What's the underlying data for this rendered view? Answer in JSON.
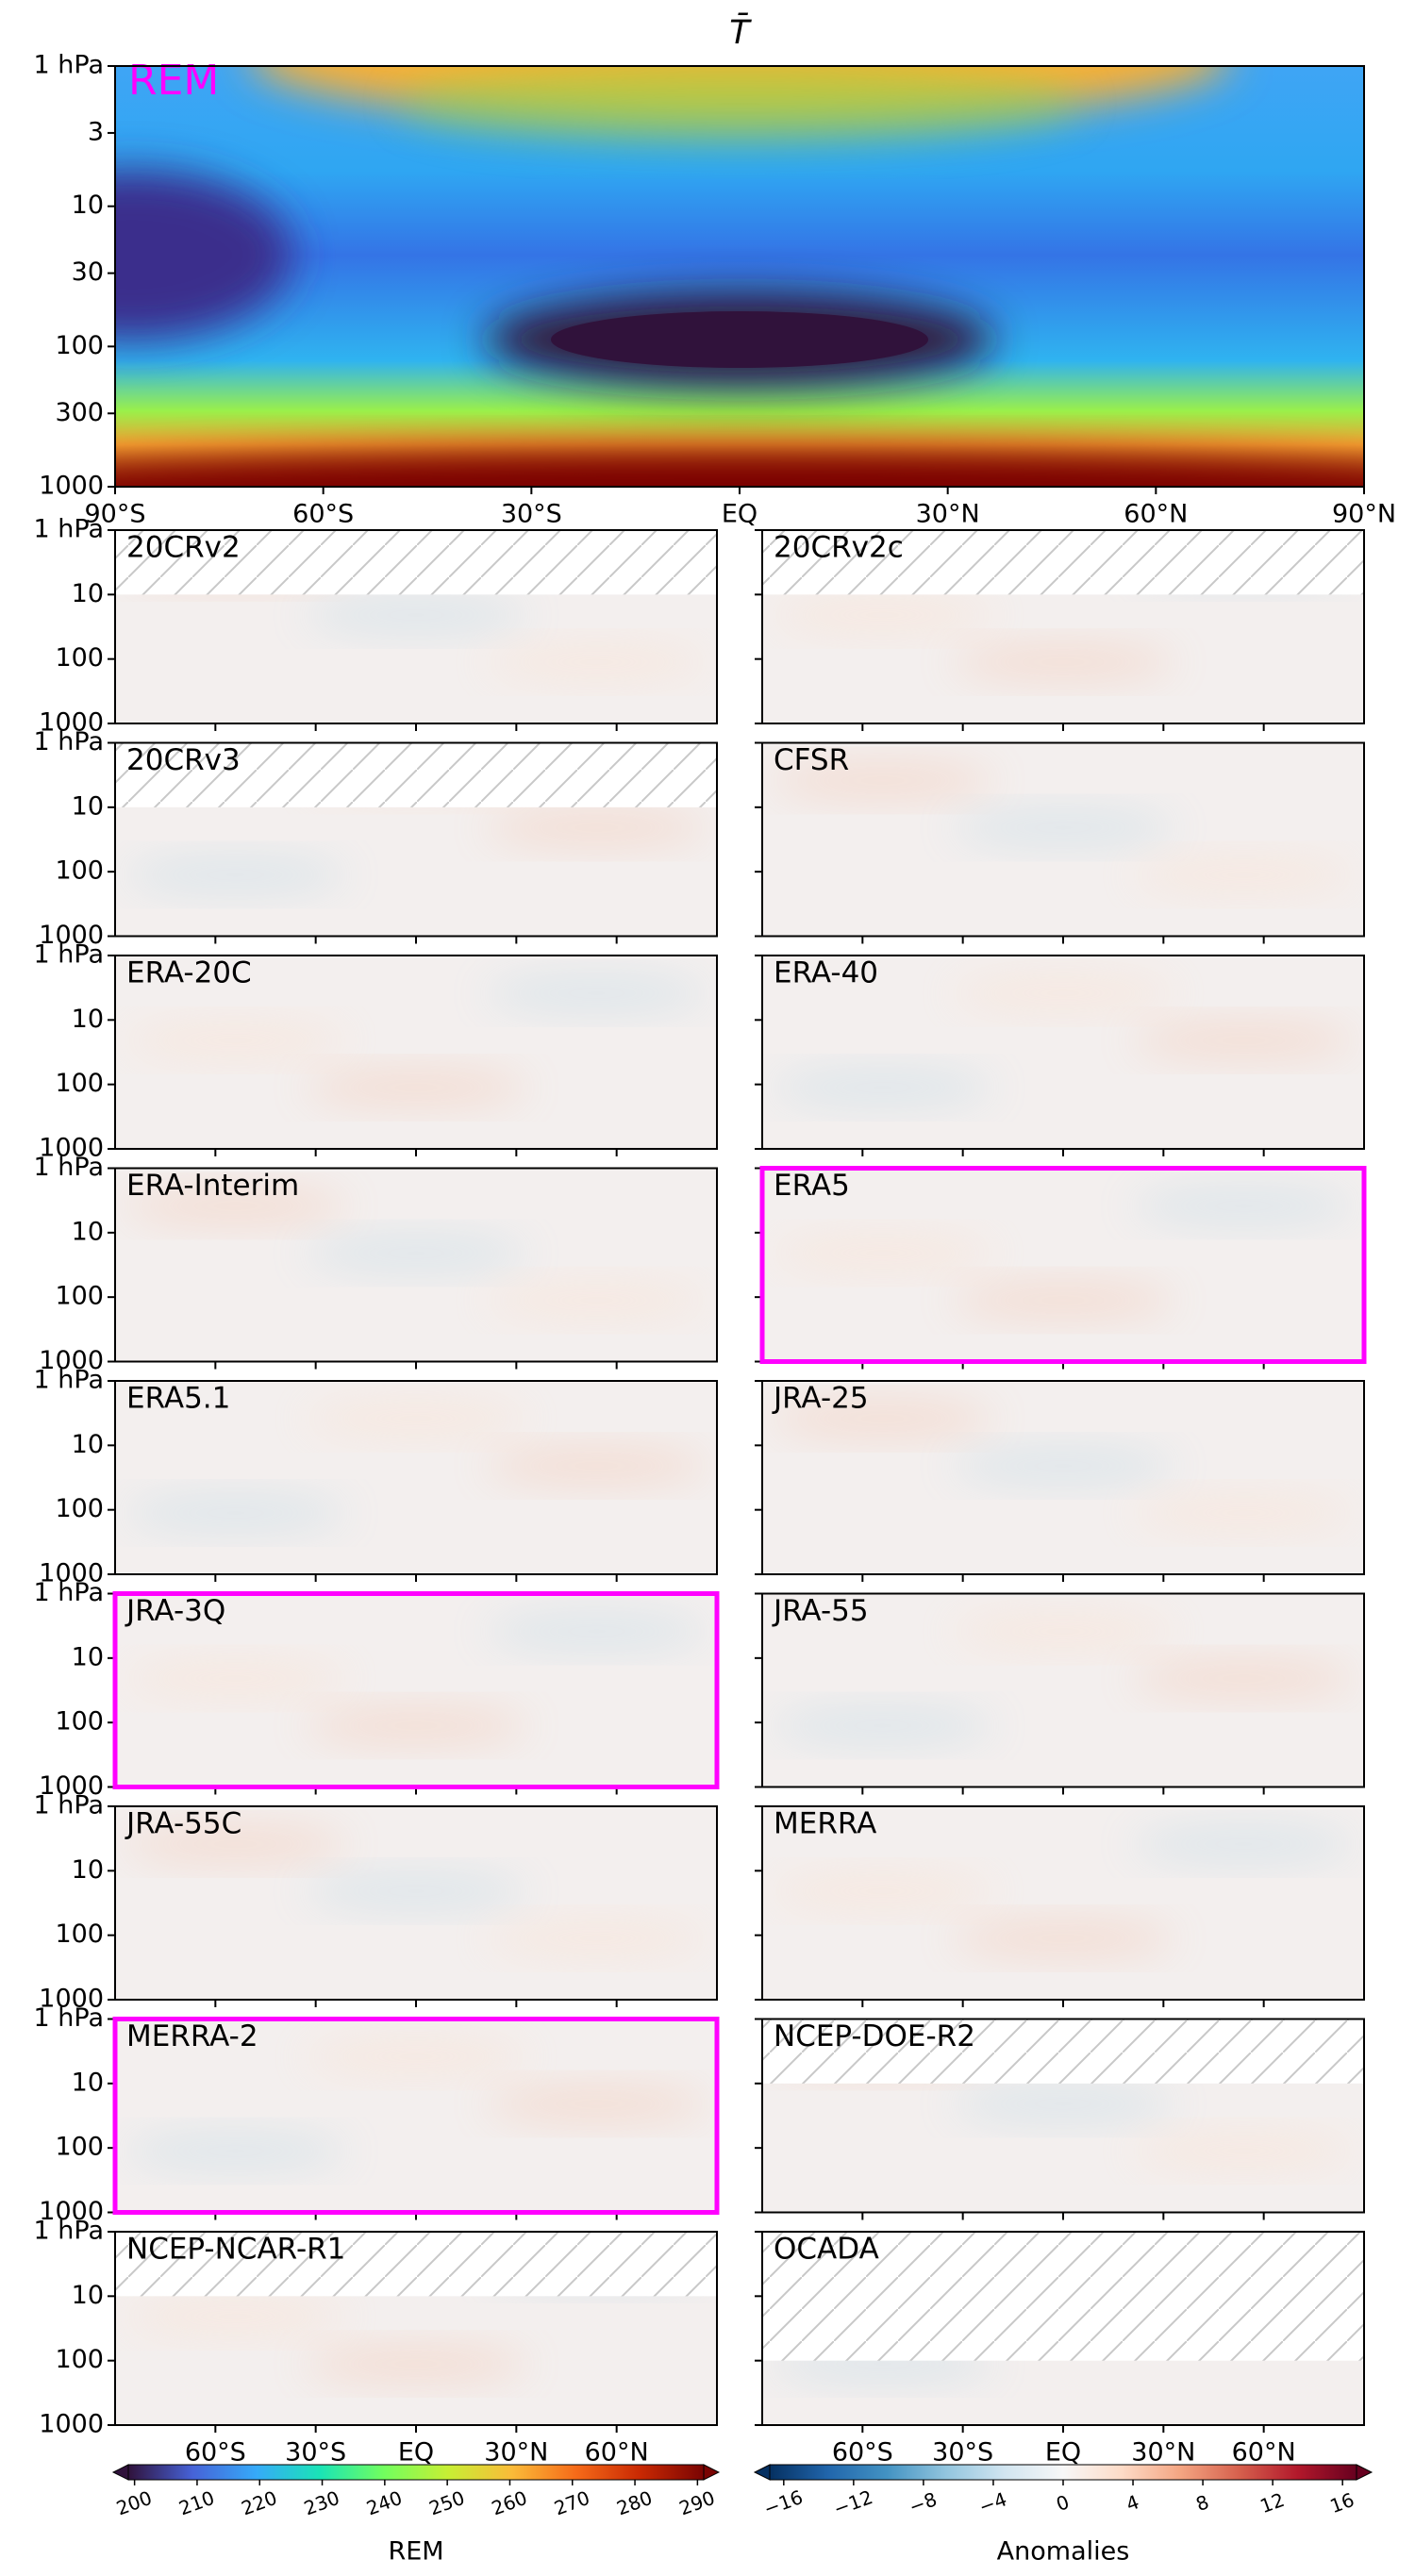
{
  "chart_data": [
    {
      "type": "contour",
      "title": "T̄",
      "label": "REM",
      "label_color": "#ff00ff",
      "colormap": "turbo",
      "log_y": true,
      "xlim": [
        -90,
        90
      ],
      "ylim": [
        1000,
        1
      ],
      "xticks": [
        {
          "value": -90,
          "label": "90°S"
        },
        {
          "value": -60,
          "label": "60°S"
        },
        {
          "value": -30,
          "label": "30°S"
        },
        {
          "value": 0,
          "label": "EQ"
        },
        {
          "value": 30,
          "label": "30°N"
        },
        {
          "value": 60,
          "label": "60°N"
        },
        {
          "value": 90,
          "label": "90°N"
        }
      ],
      "yticks": [
        {
          "value": 1,
          "label": "1 hPa"
        },
        3,
        10,
        30,
        100,
        300,
        1000
      ]
    },
    {
      "type": "contour-grid",
      "colormap": "RdBu_r",
      "log_y": true,
      "highlight_color": "#ff00ff",
      "xlim": [
        -90,
        90
      ],
      "ylim": [
        1000,
        1
      ],
      "xticks": [
        {
          "value": -60,
          "label": "60°S"
        },
        {
          "value": -30,
          "label": "30°S"
        },
        {
          "value": 0,
          "label": "EQ"
        },
        {
          "value": 30,
          "label": "30°N"
        },
        {
          "value": 60,
          "label": "60°N"
        }
      ],
      "yticks": [
        {
          "value": 1,
          "label": "1 hPa"
        },
        10,
        100,
        1000
      ],
      "panels": [
        {
          "label": "20CRv2",
          "hatched_above": 10
        },
        {
          "label": "20CRv2c",
          "hatched_above": 10
        },
        {
          "label": "20CRv3",
          "hatched_above": 10
        },
        {
          "label": "CFSR"
        },
        {
          "label": "ERA-20C"
        },
        {
          "label": "ERA-40"
        },
        {
          "label": "ERA-Interim"
        },
        {
          "label": "ERA5",
          "highlight": true
        },
        {
          "label": "ERA5.1"
        },
        {
          "label": "JRA-25"
        },
        {
          "label": "JRA-3Q",
          "highlight": true
        },
        {
          "label": "JRA-55"
        },
        {
          "label": "JRA-55C"
        },
        {
          "label": "MERRA"
        },
        {
          "label": "MERRA-2",
          "highlight": true
        },
        {
          "label": "NCEP-DOE-R2",
          "hatched_above": 10
        },
        {
          "label": "NCEP-NCAR-R1",
          "hatched_above": 10
        },
        {
          "label": "OCADA",
          "hatched_above": 100
        }
      ]
    },
    {
      "type": "colorbar",
      "colormap": "turbo",
      "label": "REM",
      "xlim": [
        199,
        291
      ],
      "xticks": [
        200,
        210,
        220,
        230,
        240,
        250,
        260,
        270,
        280,
        290
      ]
    },
    {
      "type": "colorbar",
      "colormap": "RdBu_r",
      "label": "Anomalies",
      "xlim": [
        -16.8,
        16.8
      ],
      "xticks": [
        {
          "value": -16,
          "label": "−16"
        },
        {
          "value": -12,
          "label": "−12"
        },
        {
          "value": -8,
          "label": "−8"
        },
        {
          "value": -4,
          "label": "−4"
        },
        0,
        4,
        8,
        12,
        16
      ]
    }
  ]
}
